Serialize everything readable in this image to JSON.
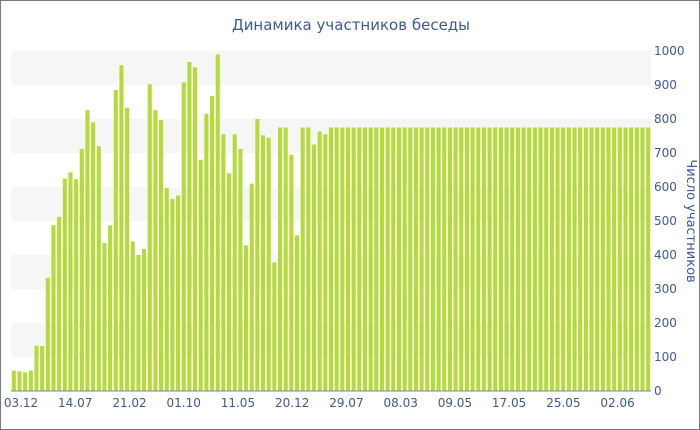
{
  "chart_data": {
    "type": "bar",
    "title": "Динамика участников беседы",
    "xlabel": "",
    "ylabel": "Число участников",
    "ylim": [
      0,
      1000
    ],
    "yticks": [
      0,
      100,
      200,
      300,
      400,
      500,
      600,
      700,
      800,
      900,
      1000
    ],
    "grid": "horizontal-bands",
    "bar_color": "#b5db3a",
    "band_color": "#f6f6f6",
    "text_color": "#3d5a9c",
    "xtick_labels": [
      "03.12",
      "14.07",
      "21.02",
      "01.10",
      "11.05",
      "20.12",
      "29.07",
      "08.03",
      "09.05",
      "17.05",
      "25.05",
      "02.06"
    ],
    "values": [
      60,
      58,
      55,
      60,
      133,
      132,
      333,
      488,
      512,
      625,
      643,
      623,
      712,
      826,
      790,
      720,
      435,
      487,
      885,
      958,
      833,
      440,
      400,
      418,
      902,
      826,
      797,
      597,
      565,
      575,
      908,
      968,
      952,
      680,
      815,
      868,
      990,
      755,
      640,
      755,
      712,
      428,
      610,
      800,
      752,
      745,
      378,
      775,
      775,
      695,
      458,
      775,
      775,
      725,
      763,
      755,
      775,
      775,
      775,
      775,
      775,
      775,
      775,
      775,
      775,
      775,
      775,
      775,
      775,
      775,
      775,
      775,
      775,
      775,
      775,
      775,
      775,
      775,
      775,
      775,
      775,
      775,
      775,
      775,
      775,
      775,
      775,
      775,
      775,
      775,
      775,
      775,
      775,
      775,
      775,
      775,
      775,
      775,
      775,
      775,
      775,
      775,
      775,
      775,
      775,
      775,
      775,
      775,
      775,
      775,
      775,
      775,
      775
    ]
  }
}
